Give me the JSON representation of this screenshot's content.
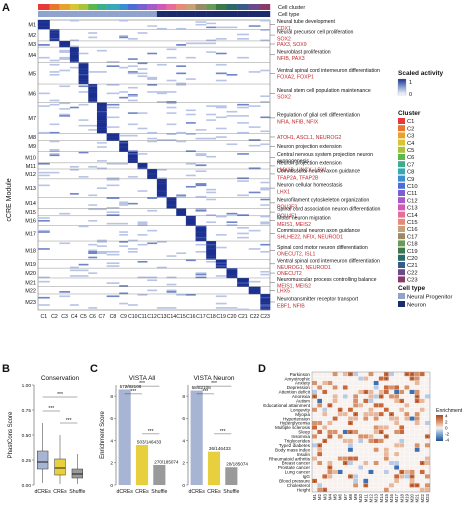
{
  "panels": {
    "A": "A",
    "B": "B",
    "C": "C",
    "D": "D"
  },
  "colors": {
    "heat_high": "#1b2f8f",
    "heat_low": "#ffffff",
    "red_text": "#c0272d",
    "progenitor": "#8fa3cc",
    "neuron": "#1c2b6b",
    "bar_dcre": "#a8b4d4",
    "bar_cre": "#e8cf3d",
    "bar_shuffle": "#9a9a9a",
    "enrich_pos": "#c9683a",
    "enrich_neg": "#3e6fb0"
  },
  "heatmap": {
    "annot_row1": "Cell cluster",
    "annot_row2": "Cell type",
    "ylabel": "cCRE Module",
    "modules": [
      "M1",
      "M2",
      "M3",
      "M4",
      "M5",
      "M6",
      "M7",
      "M8",
      "M9",
      "M10",
      "M11",
      "M12",
      "M13",
      "M14",
      "M15",
      "M16",
      "M17",
      "M18",
      "M19",
      "M20",
      "M21",
      "M22",
      "M23"
    ],
    "module_sizes": [
      15,
      19,
      10,
      25,
      35,
      30,
      50,
      12,
      18,
      18,
      10,
      16,
      30,
      18,
      12,
      16,
      25,
      30,
      14,
      16,
      14,
      12,
      26
    ],
    "clusters": [
      "C1",
      "C2",
      "C3",
      "C4",
      "C5",
      "C6",
      "C7",
      "C8",
      "C9",
      "C10",
      "C11",
      "C12",
      "C13",
      "C14",
      "C15",
      "C16",
      "C17",
      "C18",
      "C19",
      "C20",
      "C21",
      "C22",
      "C23"
    ],
    "cluster_widths": [
      12,
      10,
      11,
      9,
      10,
      9,
      10,
      13,
      9,
      10,
      10,
      10,
      10,
      10,
      10,
      10,
      11,
      10,
      11,
      11,
      12,
      12,
      10
    ],
    "cluster_colors": [
      "#e63a3a",
      "#e8762c",
      "#e6a12e",
      "#d8c532",
      "#a8c43a",
      "#5cb84a",
      "#3cae8c",
      "#37a8b8",
      "#3b8fd0",
      "#4a6ed6",
      "#7a5fd0",
      "#a55bc8",
      "#cf5bb4",
      "#e86b9a",
      "#e88a7a",
      "#c9a078",
      "#9a8a6a",
      "#6a9a5a",
      "#3a7a4a",
      "#2a6a6a",
      "#3a5a8a",
      "#6a4a8a",
      "#8a3a6a"
    ],
    "celltype_colors": [
      "#8fa3cc",
      "#8fa3cc",
      "#8fa3cc",
      "#8fa3cc",
      "#8fa3cc",
      "#8fa3cc",
      "#8fa3cc",
      "#8fa3cc",
      "#8fa3cc",
      "#8fa3cc",
      "#8fa3cc",
      "#8fa3cc",
      "#1c2b6b",
      "#1c2b6b",
      "#1c2b6b",
      "#1c2b6b",
      "#1c2b6b",
      "#1c2b6b",
      "#1c2b6b",
      "#1c2b6b",
      "#1c2b6b",
      "#1c2b6b",
      "#1c2b6b"
    ],
    "annotations": [
      {
        "lines": [
          "Neural tube development"
        ],
        "red": "CDX1"
      },
      {
        "lines": [
          "Neural precursor cell proliferation"
        ],
        "red": "SOX2"
      },
      {
        "lines": [],
        "red": "PAX3, SOX9"
      },
      {
        "lines": [
          "Neuroblast proliferation"
        ],
        "red": "NFIB, PAX3"
      },
      {
        "lines": [
          "Ventral spinal cord interneuron differentiation"
        ],
        "red": "FOXA2, FOXP1"
      },
      {
        "lines": [
          "Neural stem cell population maintenance"
        ],
        "red": "SOX2"
      },
      {
        "lines": [
          "Regulation of glial cell differentiation"
        ],
        "red": "NFIA, NFIB, NFIX",
        "black": true
      },
      {
        "lines": [],
        "red": "ATOH1, ASCL1, NEUROG2"
      },
      {
        "lines": [
          "Neuron projection extension"
        ],
        "red": ""
      },
      {
        "lines": [
          "Central nervous system projection neuron",
          "axonogenesis"
        ],
        "red": ""
      },
      {
        "lines": [
          "Neuron projection extension"
        ],
        "red": "LMX1B, UNCX, LBX1"
      },
      {
        "lines": [
          "Commissural neuron axon guidance"
        ],
        "red": "TFAP2A, TFAP2B"
      },
      {
        "lines": [
          "Neuron cellular homeostasis"
        ],
        "red": "LHX1"
      },
      {
        "lines": [
          "Neurofilament cytoskeleton organization"
        ],
        "red": "POU3F3"
      },
      {
        "lines": [
          "Spinal cord association neuron differentiation"
        ],
        "red": "POU4F1"
      },
      {
        "lines": [
          "Motor neuron migration"
        ],
        "red": "MEIS1, MEIS2"
      },
      {
        "lines": [
          "Commissural neuron axon guidance"
        ],
        "red": "SHLHE22, NFIX, NEUROD1"
      },
      {
        "lines": [
          "Spinal cord motor neuron differentiation"
        ],
        "red": "ONECUT2, ISL1"
      },
      {
        "lines": [
          "Ventral spinal cord interneuron differentiation"
        ],
        "red": "NEUROG1, NEUROD1"
      },
      {
        "lines": [],
        "red": "ONECUT2"
      },
      {
        "lines": [
          "Neuromuscular process controlling balance"
        ],
        "red": "MEIS1, MEIS2"
      },
      {
        "lines": [],
        "red": "LHX5"
      },
      {
        "lines": [
          "Neurotransmitter receptor transport"
        ],
        "red": "EBF1, NFIB"
      }
    ],
    "scale_title": "Scaled activity",
    "scale_max": "1",
    "scale_min": "0",
    "cluster_legend_title": "Cluster",
    "celltype_legend_title": "Cell type",
    "celltype_labels": [
      "Neural Progenitor",
      "Neuron"
    ]
  },
  "chart_data": [
    {
      "type": "box",
      "title": "Conservation",
      "ylabel": "PhastCons Score",
      "categories": [
        "dCREs",
        "CREs",
        "Shuffle"
      ],
      "yticks": [
        "0.00",
        "0.25",
        "0.50",
        "0.75",
        "1.00"
      ],
      "ylim": [
        0,
        1
      ],
      "boxes": [
        {
          "name": "dCREs",
          "q1": 0.16,
          "median": 0.23,
          "q3": 0.34,
          "whisker_low": 0.02,
          "whisker_high": 0.62
        },
        {
          "name": "CREs",
          "q1": 0.1,
          "median": 0.17,
          "q3": 0.26,
          "whisker_low": 0.01,
          "whisker_high": 0.5
        },
        {
          "name": "Shuffle",
          "q1": 0.07,
          "median": 0.11,
          "q3": 0.16,
          "whisker_low": 0.01,
          "whisker_high": 0.31
        }
      ],
      "significance": [
        "***",
        "***",
        "***"
      ]
    },
    {
      "type": "bar",
      "title": "VISTA All",
      "ylabel": "Enrichment Score",
      "categories": [
        "dCREs",
        "CREs",
        "Shuffle"
      ],
      "values": [
        8.6,
        3.6,
        1.8
      ],
      "labels": [
        "572/82106",
        "503/146433",
        "270/185074"
      ],
      "yticks": [
        "0",
        "2",
        "4",
        "6",
        "8"
      ],
      "ylim": [
        0,
        9
      ],
      "significance": [
        "***",
        "***",
        "***"
      ]
    },
    {
      "type": "bar",
      "title": "VISTA Neuron",
      "ylabel": "",
      "categories": [
        "dCREs",
        "CREs",
        "Shuffle"
      ],
      "values": [
        8.5,
        3.0,
        1.6
      ],
      "labels": [
        "58/82106",
        "36/146433",
        "28/185074"
      ],
      "yticks": [
        "0",
        "2",
        "4",
        "6",
        "8"
      ],
      "ylim": [
        0,
        9
      ],
      "significance": [
        "***",
        "***",
        "***"
      ]
    },
    {
      "type": "heatmap",
      "title": "",
      "rows": [
        "Parkinson",
        "Amyotrophic",
        "Anxiety",
        "Depression",
        "Attention deficit",
        "Anorexia",
        "Autism",
        "Educational attainment",
        "Longevity",
        "Myopia",
        "Hypertension",
        "Hyperglycemia",
        "Multiple sclerosis",
        "Sleep",
        "Insomnia",
        "Triglycerides",
        "Type2 diabetes",
        "Body mass index",
        "Insulin",
        "Rheumatoid arthritis",
        "Breast cancer",
        "Prostate cancer",
        "Lung cancer",
        "IgG",
        "Blood pressure",
        "Cholesterol",
        "Height"
      ],
      "columns": [
        "M1",
        "M2",
        "M3",
        "M4",
        "M5",
        "M6",
        "M7",
        "M8",
        "M9",
        "M10",
        "M11",
        "M12",
        "M13",
        "M14",
        "M15",
        "M16",
        "M17",
        "M18",
        "M19",
        "M20",
        "M21",
        "M22",
        "M23"
      ],
      "legend_title": "Enrichment",
      "legend_ticks": [
        "4",
        "2",
        "0",
        "-2",
        "-4"
      ]
    }
  ]
}
